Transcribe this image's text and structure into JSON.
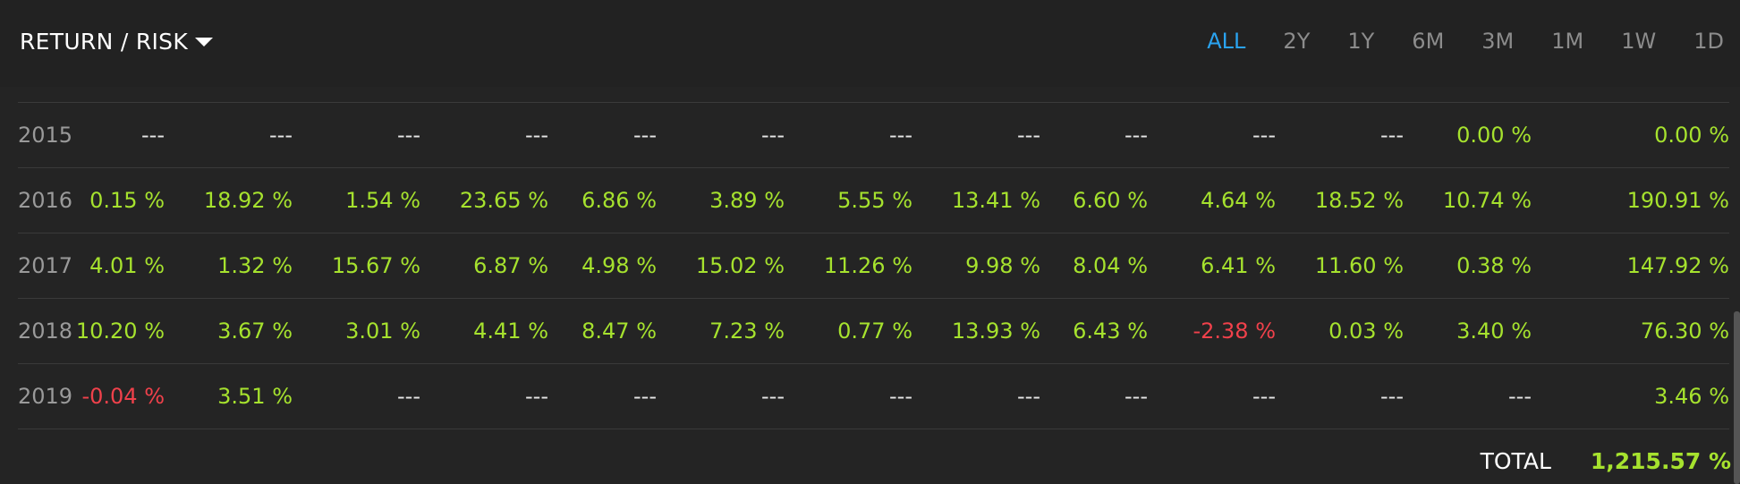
{
  "header": {
    "title": "RETURN / RISK",
    "periods": [
      "ALL",
      "2Y",
      "1Y",
      "6M",
      "3M",
      "1M",
      "1W",
      "1D"
    ],
    "active_period": "ALL"
  },
  "colors": {
    "positive": "#a6e22e",
    "negative": "#f0414b",
    "active_period": "#2aa3f0"
  },
  "rows": [
    {
      "year": "2015",
      "values": [
        "---",
        "---",
        "---",
        "---",
        "---",
        "---",
        "---",
        "---",
        "---",
        "---",
        "---",
        "0.00 %",
        "0.00 %"
      ]
    },
    {
      "year": "2016",
      "values": [
        "0.15 %",
        "18.92 %",
        "1.54 %",
        "23.65 %",
        "6.86 %",
        "3.89 %",
        "5.55 %",
        "13.41 %",
        "6.60 %",
        "4.64 %",
        "18.52 %",
        "10.74 %",
        "190.91 %"
      ]
    },
    {
      "year": "2017",
      "values": [
        "4.01 %",
        "1.32 %",
        "15.67 %",
        "6.87 %",
        "4.98 %",
        "15.02 %",
        "11.26 %",
        "9.98 %",
        "8.04 %",
        "6.41 %",
        "11.60 %",
        "0.38 %",
        "147.92 %"
      ]
    },
    {
      "year": "2018",
      "values": [
        "10.20 %",
        "3.67 %",
        "3.01 %",
        "4.41 %",
        "8.47 %",
        "7.23 %",
        "0.77 %",
        "13.93 %",
        "6.43 %",
        "-2.38 %",
        "0.03 %",
        "3.40 %",
        "76.30 %"
      ]
    },
    {
      "year": "2019",
      "values": [
        "-0.04 %",
        "3.51 %",
        "---",
        "---",
        "---",
        "---",
        "---",
        "---",
        "---",
        "---",
        "---",
        "---",
        "3.46 %"
      ]
    }
  ],
  "total": {
    "label": "TOTAL",
    "value": "1,215.57 %"
  }
}
